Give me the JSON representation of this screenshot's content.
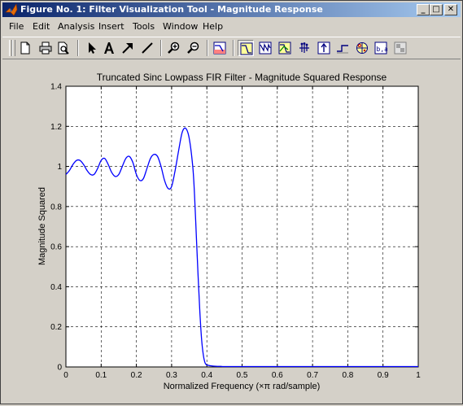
{
  "window": {
    "title": "Figure No. 1: Filter Visualization Tool - Magnitude Response",
    "minimize": "_",
    "maximize": "□",
    "close": "✕"
  },
  "menu": [
    {
      "label": "File"
    },
    {
      "label": "Edit"
    },
    {
      "label": "Analysis"
    },
    {
      "label": "Insert"
    },
    {
      "label": "Tools"
    },
    {
      "label": "Window"
    },
    {
      "label": "Help"
    }
  ],
  "toolbar": {
    "buttons": [
      {
        "icon": "new-file-icon"
      },
      {
        "icon": "print-icon"
      },
      {
        "icon": "print-preview-icon"
      },
      {
        "icon": "edit-plot-arrow-icon"
      },
      {
        "icon": "insert-text-icon"
      },
      {
        "icon": "insert-arrow-icon"
      },
      {
        "icon": "insert-line-icon"
      },
      {
        "icon": "zoom-in-icon"
      },
      {
        "icon": "zoom-out-icon"
      },
      {
        "icon": "filter-specs-icon"
      },
      {
        "icon": "magnitude-response-icon",
        "pressed": true
      },
      {
        "icon": "phase-response-icon"
      },
      {
        "icon": "magnitude-phase-icon"
      },
      {
        "icon": "group-delay-icon"
      },
      {
        "icon": "impulse-response-icon"
      },
      {
        "icon": "step-response-icon"
      },
      {
        "icon": "pole-zero-icon"
      },
      {
        "icon": "filter-coefficients-icon"
      },
      {
        "icon": "filter-info-icon"
      }
    ]
  },
  "chart_data": {
    "type": "line",
    "title": "Truncated Sinc Lowpass FIR Filter - Magnitude Squared Response",
    "xlabel": "Normalized Frequency  (×π rad/sample)",
    "ylabel": "Magnitude Squared",
    "xlim": [
      0,
      1
    ],
    "ylim": [
      0,
      1.4
    ],
    "xticks": [
      "0",
      "0.1",
      "0.2",
      "0.3",
      "0.4",
      "0.5",
      "0.6",
      "0.7",
      "0.8",
      "0.9",
      "1"
    ],
    "yticks": [
      "0",
      "0.2",
      "0.4",
      "0.6",
      "0.8",
      "1",
      "1.2",
      "1.4"
    ],
    "grid": true,
    "line_color": "#0000ff",
    "series": [
      {
        "x": [
          0,
          0.01,
          0.02,
          0.03,
          0.04,
          0.05,
          0.06,
          0.07,
          0.08,
          0.09,
          0.1,
          0.11,
          0.12,
          0.13,
          0.14,
          0.15,
          0.16,
          0.17,
          0.18,
          0.19,
          0.2,
          0.21,
          0.22,
          0.23,
          0.24,
          0.25,
          0.26,
          0.27,
          0.28,
          0.29,
          0.3,
          0.31,
          0.32,
          0.33,
          0.34,
          0.35,
          0.36,
          0.365,
          0.37,
          0.375,
          0.38,
          0.385,
          0.39,
          0.395,
          0.4,
          0.405,
          0.41,
          0.42,
          0.43,
          0.44,
          0.45,
          0.5,
          0.6,
          0.7,
          0.8,
          0.9,
          1.0
        ],
        "y": [
          0.96,
          0.98,
          1.01,
          1.03,
          1.03,
          1.01,
          0.98,
          0.96,
          0.96,
          0.99,
          1.03,
          1.04,
          1.01,
          0.97,
          0.95,
          0.96,
          1.0,
          1.04,
          1.05,
          1.02,
          0.96,
          0.93,
          0.94,
          0.99,
          1.04,
          1.06,
          1.05,
          1.0,
          0.93,
          0.89,
          0.9,
          0.98,
          1.08,
          1.17,
          1.19,
          1.14,
          1.0,
          0.86,
          0.66,
          0.46,
          0.28,
          0.14,
          0.06,
          0.02,
          0.01,
          0.008,
          0.006,
          0.004,
          0.003,
          0.003,
          0.002,
          0.002,
          0.002,
          0.002,
          0.002,
          0.002,
          0.002
        ]
      }
    ]
  }
}
